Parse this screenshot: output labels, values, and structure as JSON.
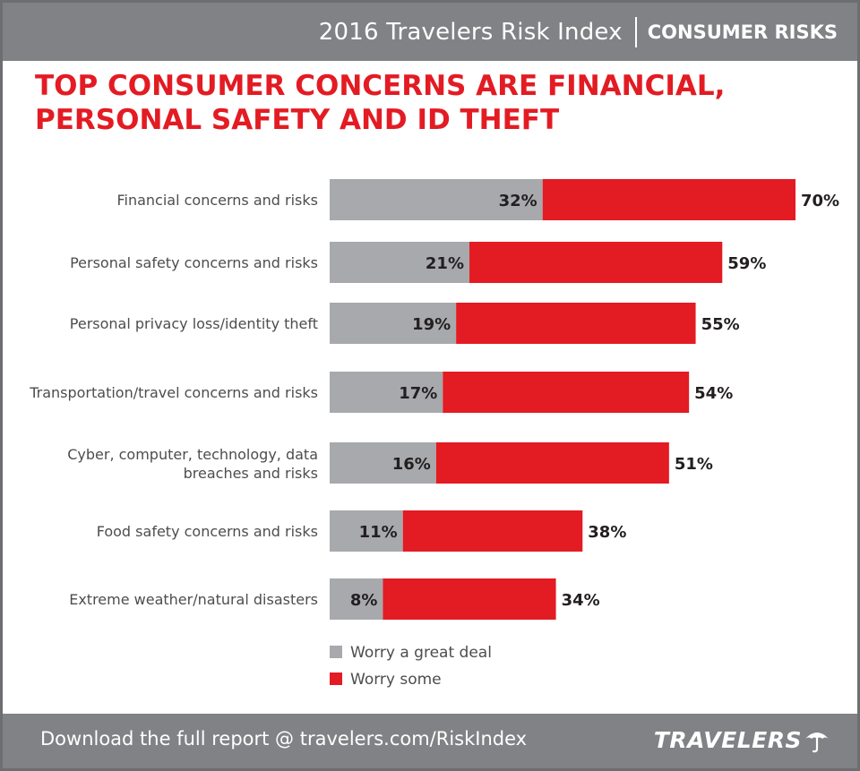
{
  "header": {
    "report_title": "2016 Travelers Risk Index",
    "section_label": "CONSUMER RISKS"
  },
  "headline": {
    "line1": "TOP CONSUMER CONCERNS ARE FINANCIAL,",
    "line2": "PERSONAL SAFETY AND ID THEFT"
  },
  "chart_data": {
    "type": "bar",
    "orientation": "horizontal",
    "stacked": true,
    "categories": [
      [
        "Financial concerns and risks"
      ],
      [
        "Personal safety concerns and risks"
      ],
      [
        "Personal privacy loss/identity theft"
      ],
      [
        "Transportation/travel concerns and risks"
      ],
      [
        "Cyber, computer, technology, data",
        "breaches and risks"
      ],
      [
        "Food safety concerns and risks"
      ],
      [
        "Extreme weather/natural disasters"
      ]
    ],
    "series": [
      {
        "name": "Worry a great deal",
        "color": "#a7a9ac",
        "values": [
          32,
          21,
          19,
          17,
          16,
          11,
          8
        ],
        "labels": [
          "32%",
          "21%",
          "19%",
          "17%",
          "16%",
          "11%",
          "8%"
        ]
      },
      {
        "name": "Worry some",
        "color": "#e31b23",
        "values": [
          38,
          38,
          36,
          37,
          35,
          27,
          26
        ]
      }
    ],
    "totals": [
      70,
      59,
      55,
      54,
      51,
      38,
      34
    ],
    "total_labels": [
      "70%",
      "59%",
      "55%",
      "54%",
      "51%",
      "38%",
      "34%"
    ],
    "xlim": [
      0,
      70
    ],
    "grid": false,
    "legend_position": "bottom"
  },
  "footer": {
    "download_text": "Download the full report @ travelers.com/RiskIndex",
    "brand": "TRAVELERS",
    "brand_icon": "umbrella-icon"
  }
}
